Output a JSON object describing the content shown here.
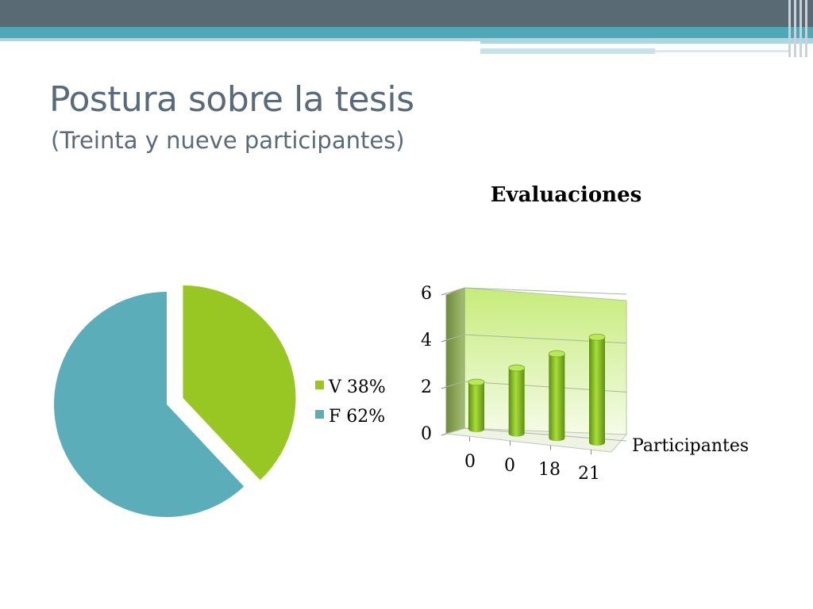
{
  "slide": {
    "title": "Postura sobre la tesis",
    "subtitle": "(Treinta y nueve participantes)"
  },
  "colors": {
    "header_dark": "#5a6a75",
    "header_teal": "#4fa8b8",
    "header_light": "#a9d6df",
    "title_text": "#596b78",
    "pie_v": "#98c723",
    "pie_f": "#5baeb9",
    "bar": "#8fc21c"
  },
  "chart_data": [
    {
      "type": "pie",
      "title": "",
      "slices": [
        {
          "label": "V 38%",
          "value": 38,
          "color": "#98c723"
        },
        {
          "label": "F 62%",
          "value": 62,
          "color": "#5baeb9"
        }
      ],
      "exploded": "V 38%",
      "legend_position": "right"
    },
    {
      "type": "bar",
      "style": "3d-cylinder",
      "title": "Evaluaciones",
      "categories": [
        "0",
        "0",
        "18",
        "21"
      ],
      "series": [
        {
          "name": "Participantes",
          "values": [
            2,
            2.8,
            3.6,
            4.5
          ]
        }
      ],
      "ylim": [
        0,
        6
      ],
      "yticks": [
        "0",
        "2",
        "4",
        "6"
      ],
      "grid": true,
      "legend_position": "right"
    }
  ]
}
